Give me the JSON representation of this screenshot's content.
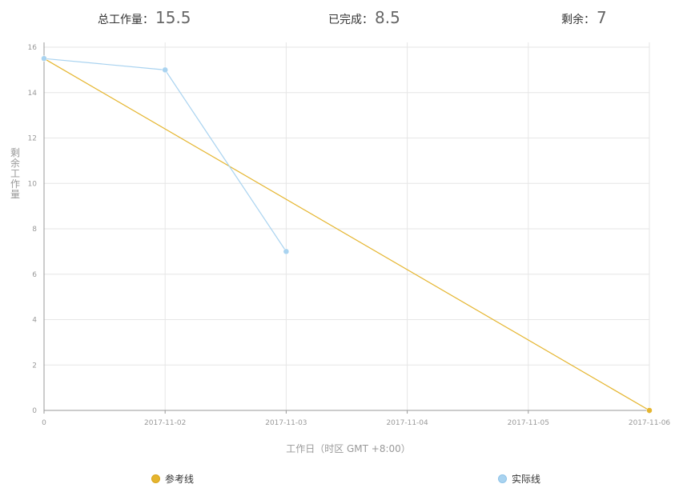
{
  "summary": {
    "total_label": "总工作量：",
    "total_value": "15.5",
    "done_label": "已完成：",
    "done_value": "8.5",
    "remaining_label": "剩余：",
    "remaining_value": "7"
  },
  "chart_data": {
    "type": "line",
    "xlabel": "工作日（时区 GMT +8:00）",
    "ylabel": "剩余工作量",
    "ylim": [
      0,
      16
    ],
    "y_ticks": [
      0,
      2,
      4,
      6,
      8,
      10,
      12,
      14,
      16
    ],
    "x_ticks": [
      "0",
      "2017-11-02",
      "2017-11-03",
      "2017-11-04",
      "2017-11-05",
      "2017-11-06"
    ],
    "grid": true,
    "legend_position": "bottom",
    "series": [
      {
        "name": "参考线",
        "color": "#E5B52E",
        "points": [
          {
            "x": "0",
            "y": 15.5
          },
          {
            "x": "2017-11-06",
            "y": 0
          }
        ]
      },
      {
        "name": "实际线",
        "color": "#A9D3F0",
        "points": [
          {
            "x": "0",
            "y": 15.5
          },
          {
            "x": "2017-11-02",
            "y": 15
          },
          {
            "x": "2017-11-03",
            "y": 7
          }
        ]
      }
    ]
  }
}
